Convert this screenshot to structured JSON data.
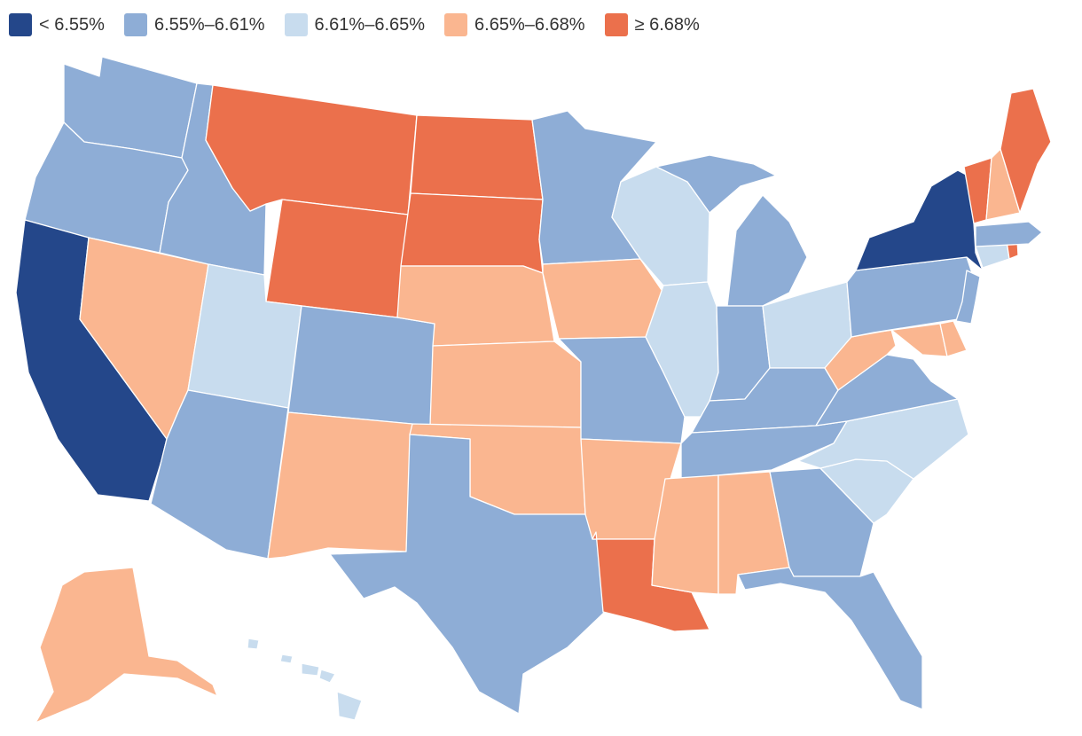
{
  "legend": [
    {
      "label": "< 6.55%",
      "color": "#24478a",
      "bin": "lt655"
    },
    {
      "label": "6.55%–6.61%",
      "color": "#8eadd6",
      "bin": "655_661"
    },
    {
      "label": "6.61%–6.65%",
      "color": "#c8dcee",
      "bin": "661_665"
    },
    {
      "label": "6.65%–6.68%",
      "color": "#fab690",
      "bin": "665_668"
    },
    {
      "label": "≥ 6.68%",
      "color": "#eb704c",
      "bin": "ge668"
    }
  ],
  "state_bins": {
    "WA": "655_661",
    "OR": "655_661",
    "CA": "lt655",
    "NV": "665_668",
    "ID": "655_661",
    "MT": "ge668",
    "WY": "ge668",
    "UT": "661_665",
    "AZ": "655_661",
    "CO": "655_661",
    "NM": "665_668",
    "ND": "ge668",
    "SD": "ge668",
    "NE": "665_668",
    "KS": "665_668",
    "OK": "665_668",
    "TX": "655_661",
    "MN": "655_661",
    "IA": "665_668",
    "MO": "655_661",
    "AR": "665_668",
    "LA": "ge668",
    "WI": "661_665",
    "IL": "661_665",
    "MI": "655_661",
    "IN": "655_661",
    "OH": "661_665",
    "KY": "655_661",
    "TN": "655_661",
    "MS": "665_668",
    "AL": "665_668",
    "GA": "655_661",
    "FL": "655_661",
    "SC": "661_665",
    "NC": "661_665",
    "VA": "655_661",
    "WV": "665_668",
    "MD": "665_668",
    "DE": "665_668",
    "NJ": "655_661",
    "PA": "655_661",
    "NY": "lt655",
    "CT": "661_665",
    "RI": "ge668",
    "MA": "655_661",
    "VT": "ge668",
    "NH": "665_668",
    "ME": "ge668",
    "AK": "665_668",
    "HI": "661_665"
  }
}
